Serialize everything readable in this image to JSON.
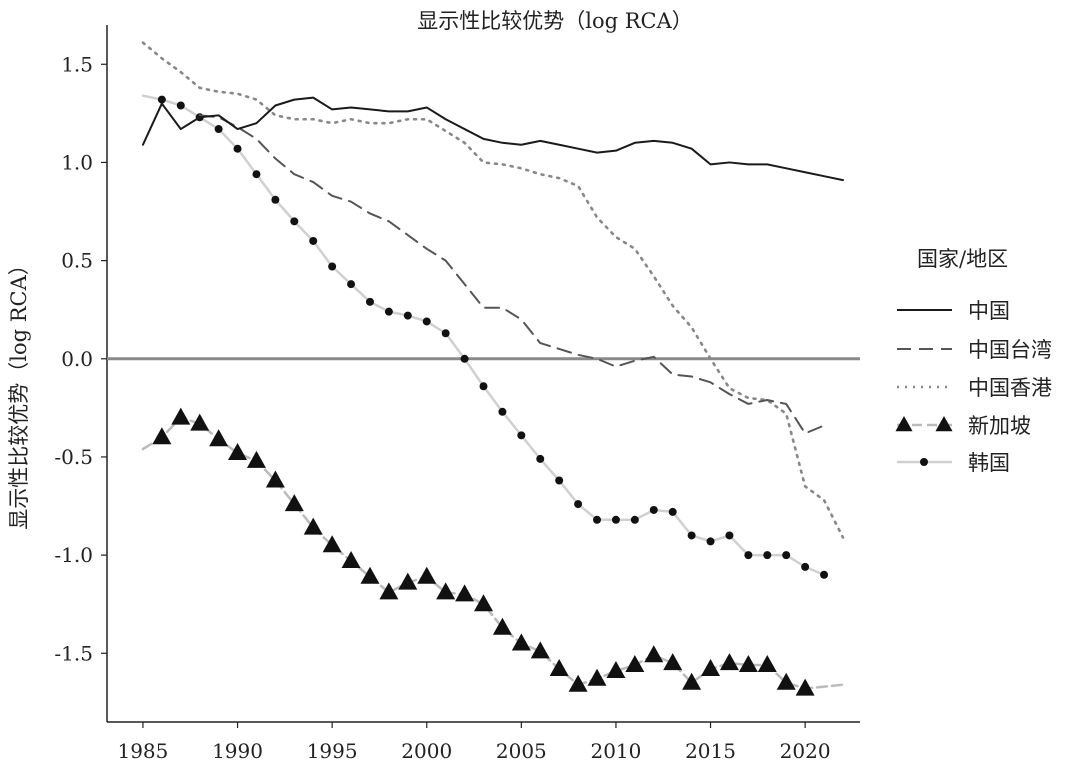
{
  "chart_data": {
    "type": "line",
    "title": "显示性比较优势（log RCA）",
    "xlabel": "",
    "ylabel": "显示性比较优势（log RCA）",
    "xlim": [
      1983.1,
      2022.9
    ],
    "ylim": [
      -1.85,
      1.7
    ],
    "xticks": [
      1985,
      1990,
      1995,
      2000,
      2005,
      2010,
      2015,
      2020
    ],
    "yticks": [
      -1.5,
      -1.0,
      -0.5,
      0.0,
      0.5,
      1.0,
      1.5
    ],
    "ytick_labels": [
      "-1.5",
      "-1.0",
      "-0.5",
      "0.0",
      "0.5",
      "1.0",
      "1.5"
    ],
    "reference_line": 0,
    "grid": false,
    "legend": {
      "title": "国家/地区",
      "position": "right"
    },
    "series": [
      {
        "name": "中国",
        "style": "solid",
        "color": "#1a1a1a",
        "x": [
          1985,
          1986,
          1987,
          1988,
          1989,
          1990,
          1991,
          1992,
          1993,
          1994,
          1995,
          1996,
          1997,
          1998,
          1999,
          2000,
          2001,
          2002,
          2003,
          2004,
          2005,
          2006,
          2007,
          2008,
          2009,
          2010,
          2011,
          2012,
          2013,
          2014,
          2015,
          2016,
          2017,
          2018,
          2019,
          2020,
          2021,
          2022
        ],
        "values": [
          1.09,
          1.3,
          1.17,
          1.23,
          1.24,
          1.17,
          1.2,
          1.29,
          1.32,
          1.33,
          1.27,
          1.28,
          1.27,
          1.26,
          1.26,
          1.28,
          1.22,
          1.17,
          1.12,
          1.1,
          1.09,
          1.11,
          1.09,
          1.07,
          1.05,
          1.06,
          1.1,
          1.11,
          1.1,
          1.07,
          0.99,
          1.0,
          0.99,
          0.99,
          0.97,
          0.95,
          0.93,
          0.91
        ]
      },
      {
        "name": "中国台湾",
        "style": "dashed",
        "color": "#555555",
        "x": [
          1988,
          1989,
          1990,
          1991,
          1992,
          1993,
          1994,
          1995,
          1996,
          1997,
          1998,
          1999,
          2000,
          2001,
          2002,
          2003,
          2004,
          2005,
          2006,
          2007,
          2008,
          2009,
          2010,
          2011,
          2012,
          2013,
          2014,
          2015,
          2016,
          2017,
          2018,
          2019,
          2020,
          2021
        ],
        "values": [
          1.24,
          1.23,
          1.18,
          1.12,
          1.02,
          0.94,
          0.9,
          0.83,
          0.8,
          0.74,
          0.7,
          0.63,
          0.56,
          0.5,
          0.38,
          0.26,
          0.26,
          0.2,
          0.08,
          0.05,
          0.02,
          0.0,
          -0.04,
          -0.01,
          0.01,
          -0.08,
          -0.09,
          -0.12,
          -0.18,
          -0.23,
          -0.21,
          -0.23,
          -0.38,
          -0.34
        ]
      },
      {
        "name": "中国香港",
        "style": "dotted",
        "color": "#888888",
        "x": [
          1985,
          1986,
          1987,
          1988,
          1989,
          1990,
          1991,
          1992,
          1993,
          1994,
          1995,
          1996,
          1997,
          1998,
          1999,
          2000,
          2001,
          2002,
          2003,
          2004,
          2005,
          2006,
          2007,
          2008,
          2009,
          2010,
          2011,
          2012,
          2013,
          2014,
          2015,
          2016,
          2017,
          2018,
          2019,
          2020,
          2021,
          2022
        ],
        "values": [
          1.61,
          1.53,
          1.46,
          1.38,
          1.36,
          1.35,
          1.32,
          1.24,
          1.22,
          1.22,
          1.2,
          1.22,
          1.2,
          1.2,
          1.22,
          1.22,
          1.16,
          1.1,
          1.0,
          0.99,
          0.97,
          0.94,
          0.92,
          0.88,
          0.72,
          0.62,
          0.56,
          0.42,
          0.27,
          0.16,
          0.0,
          -0.15,
          -0.2,
          -0.21,
          -0.28,
          -0.65,
          -0.72,
          -0.91
        ]
      },
      {
        "name": "新加坡",
        "style": "dashed-light-triangle",
        "color": "#bbbbbb",
        "marker": "triangle",
        "x": [
          1985,
          1986,
          1987,
          1988,
          1989,
          1990,
          1991,
          1992,
          1993,
          1994,
          1995,
          1996,
          1997,
          1998,
          1999,
          2000,
          2001,
          2002,
          2003,
          2004,
          2005,
          2006,
          2007,
          2008,
          2009,
          2010,
          2011,
          2012,
          2013,
          2014,
          2015,
          2016,
          2017,
          2018,
          2019,
          2020,
          2021,
          2022
        ],
        "values": [
          -0.46,
          -0.4,
          -0.3,
          -0.33,
          -0.41,
          -0.48,
          -0.52,
          -0.62,
          -0.74,
          -0.86,
          -0.95,
          -1.03,
          -1.11,
          -1.19,
          -1.14,
          -1.11,
          -1.19,
          -1.2,
          -1.25,
          -1.37,
          -1.45,
          -1.49,
          -1.58,
          -1.66,
          -1.63,
          -1.59,
          -1.56,
          -1.51,
          -1.55,
          -1.65,
          -1.58,
          -1.55,
          -1.56,
          -1.56,
          -1.65,
          -1.68,
          -1.67,
          -1.66
        ]
      },
      {
        "name": "韩国",
        "style": "solid-light-dot",
        "color": "#cccccc",
        "marker": "dot",
        "x": [
          1985,
          1986,
          1987,
          1988,
          1989,
          1990,
          1991,
          1992,
          1993,
          1994,
          1995,
          1996,
          1997,
          1998,
          1999,
          2000,
          2001,
          2002,
          2003,
          2004,
          2005,
          2006,
          2007,
          2008,
          2009,
          2010,
          2011,
          2012,
          2013,
          2014,
          2015,
          2016,
          2017,
          2018,
          2019,
          2020,
          2021
        ],
        "values": [
          1.34,
          1.32,
          1.29,
          1.23,
          1.17,
          1.07,
          0.94,
          0.81,
          0.7,
          0.6,
          0.47,
          0.38,
          0.29,
          0.24,
          0.22,
          0.19,
          0.13,
          0.0,
          -0.14,
          -0.27,
          -0.39,
          -0.51,
          -0.62,
          -0.74,
          -0.82,
          -0.82,
          -0.82,
          -0.77,
          -0.78,
          -0.9,
          -0.93,
          -0.9,
          -1.0,
          -1.0,
          -1.0,
          -1.06,
          -1.1
        ]
      }
    ]
  }
}
